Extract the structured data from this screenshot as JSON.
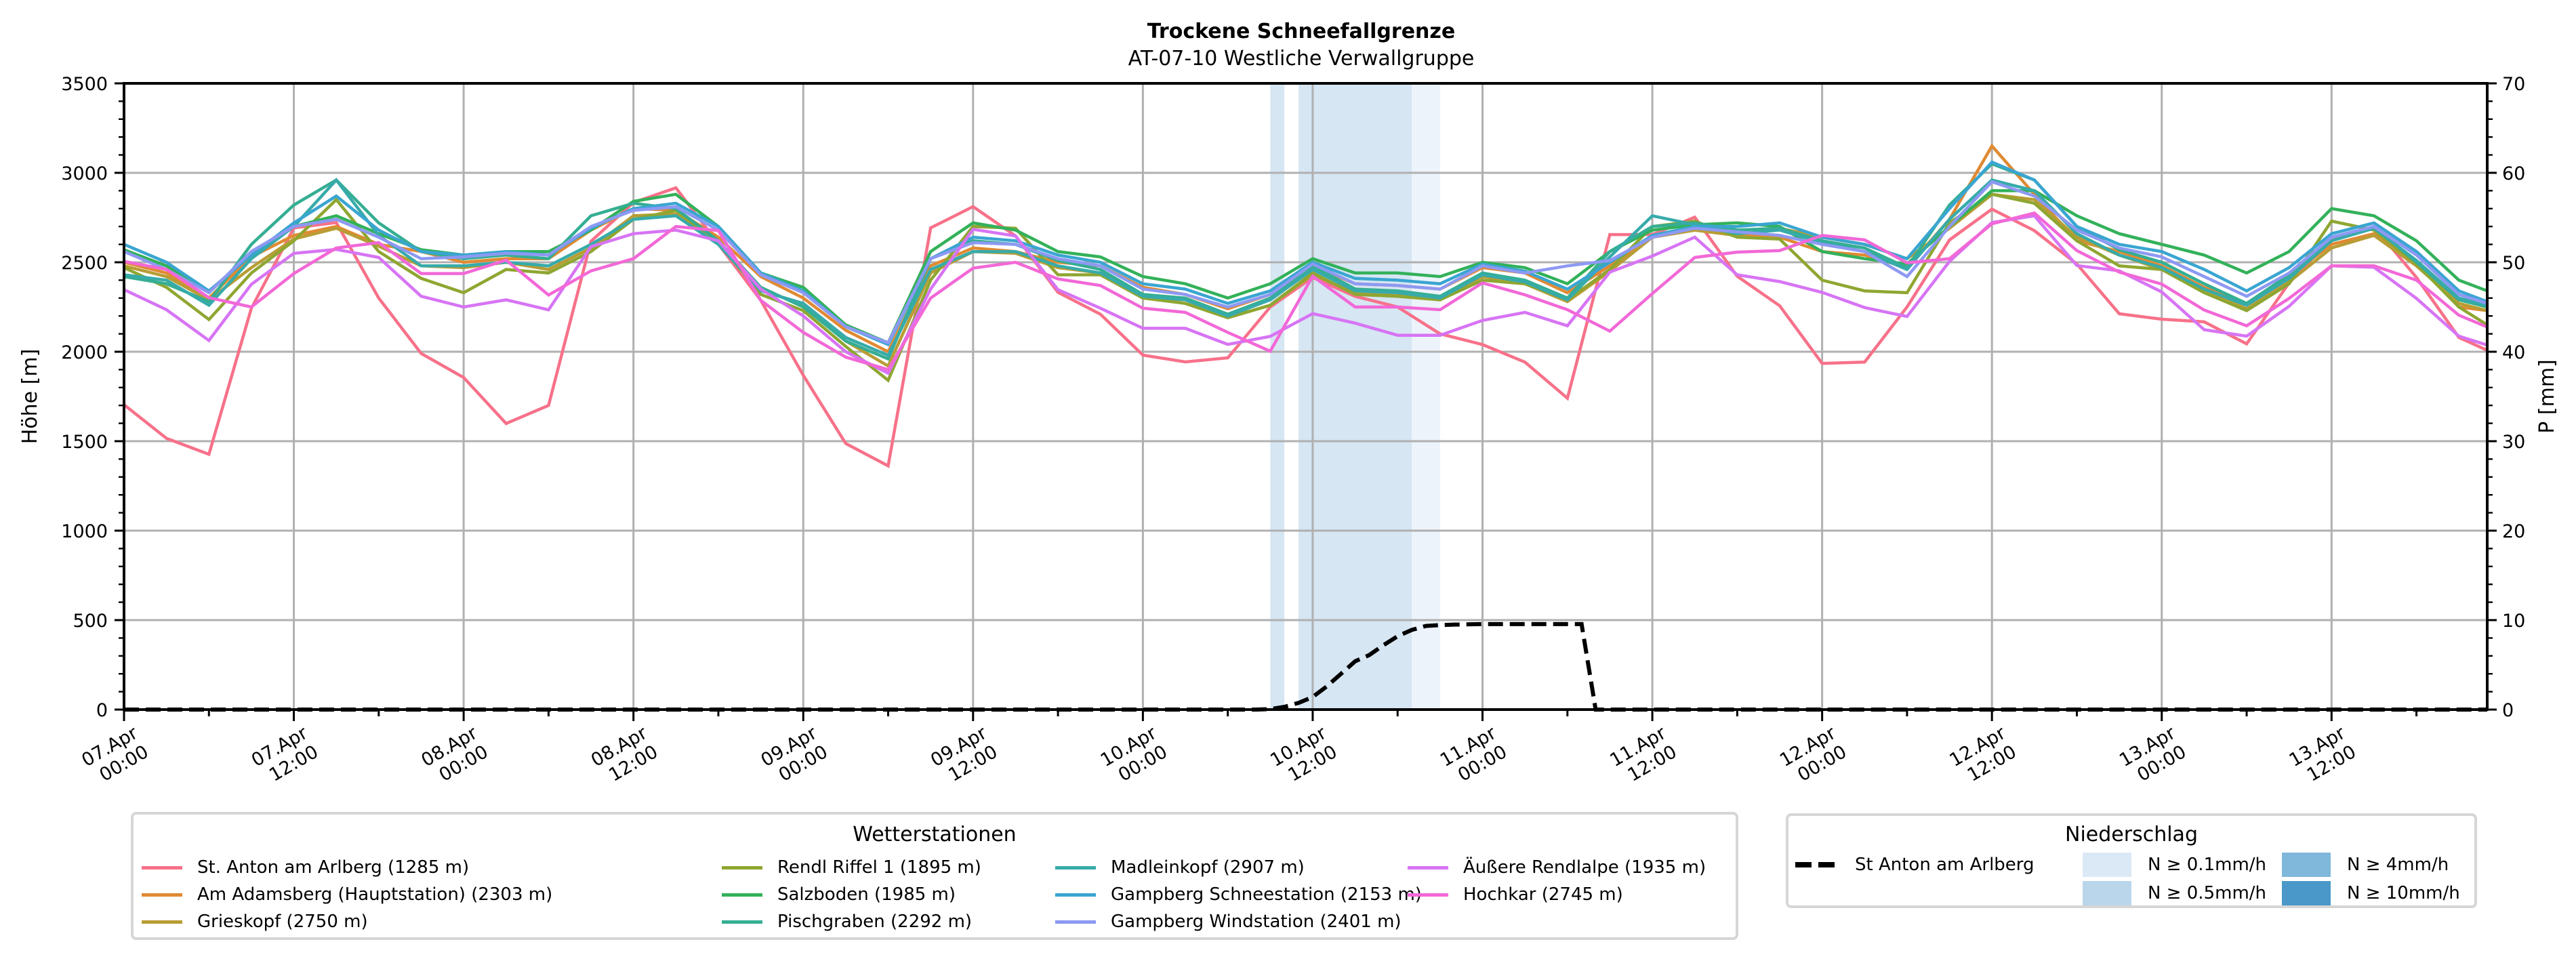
{
  "chart_data": {
    "type": "line",
    "title": "Trockene Schneefallgrenze",
    "subtitle": "AT-07-10 Westliche Verwallgruppe",
    "ylabel": "Höhe [m]",
    "y2label": "P [mm]",
    "ylim": [
      0,
      3500
    ],
    "y2lim": [
      0,
      70
    ],
    "yticks": [
      "0",
      "500",
      "1000",
      "1500",
      "2000",
      "2500",
      "3000",
      "3500"
    ],
    "y2ticks": [
      "0",
      "10",
      "20",
      "30",
      "40",
      "50",
      "60",
      "70"
    ],
    "x_unit": "hours since 07.Apr 00:00",
    "xlim": [
      0,
      167
    ],
    "xticks": [
      {
        "h": 0,
        "line1": "07.Apr",
        "line2": "00:00"
      },
      {
        "h": 12,
        "line1": "07.Apr",
        "line2": "12:00"
      },
      {
        "h": 24,
        "line1": "08.Apr",
        "line2": "00:00"
      },
      {
        "h": 36,
        "line1": "08.Apr",
        "line2": "12:00"
      },
      {
        "h": 48,
        "line1": "09.Apr",
        "line2": "00:00"
      },
      {
        "h": 60,
        "line1": "09.Apr",
        "line2": "12:00"
      },
      {
        "h": 72,
        "line1": "10.Apr",
        "line2": "00:00"
      },
      {
        "h": 84,
        "line1": "10.Apr",
        "line2": "12:00"
      },
      {
        "h": 96,
        "line1": "11.Apr",
        "line2": "00:00"
      },
      {
        "h": 108,
        "line1": "11.Apr",
        "line2": "12:00"
      },
      {
        "h": 120,
        "line1": "12.Apr",
        "line2": "00:00"
      },
      {
        "h": 132,
        "line1": "12.Apr",
        "line2": "12:00"
      },
      {
        "h": 144,
        "line1": "13.Apr",
        "line2": "00:00"
      },
      {
        "h": 156,
        "line1": "13.Apr",
        "line2": "12:00"
      }
    ],
    "grid": true,
    "x": [
      0,
      3,
      6,
      9,
      12,
      15,
      18,
      21,
      24,
      27,
      30,
      33,
      36,
      39,
      42,
      45,
      48,
      51,
      54,
      57,
      60,
      63,
      66,
      69,
      72,
      75,
      78,
      81,
      84,
      87,
      90,
      93,
      96,
      99,
      102,
      105,
      108,
      111,
      114,
      117,
      120,
      123,
      126,
      129,
      132,
      135,
      138,
      141,
      144,
      147,
      150,
      153,
      156,
      159,
      162,
      165,
      167
    ],
    "legend_station_title": "Wetterstationen",
    "series": [
      {
        "name": "St. Anton am Arlberg (1285 m)",
        "color": "#f77189",
        "values": [
          1704,
          1516,
          1427,
          2243,
          2692,
          2722,
          2300,
          1990,
          1856,
          1599,
          1700,
          2617,
          2834,
          2916,
          2602,
          2287,
          1868,
          1487,
          1362,
          2692,
          2811,
          2647,
          2332,
          2210,
          1981,
          1943,
          1966,
          2250,
          2415,
          2310,
          2250,
          2100,
          2040,
          1942,
          1740,
          2655,
          2655,
          2752,
          2422,
          2257,
          1935,
          1942,
          2250,
          2625,
          2797,
          2677,
          2490,
          2212,
          2182,
          2167,
          2044,
          2385,
          2633,
          2698,
          2415,
          2080,
          2008
        ]
      },
      {
        "name": "Am Adamsberg (Hauptstation) (2303 m)",
        "color": "#e08a33",
        "values": [
          2500,
          2440,
          2300,
          2530,
          2650,
          2700,
          2600,
          2560,
          2500,
          2520,
          2520,
          2680,
          2800,
          2790,
          2640,
          2420,
          2300,
          2120,
          2000,
          2480,
          2580,
          2560,
          2500,
          2480,
          2360,
          2320,
          2240,
          2320,
          2480,
          2380,
          2370,
          2350,
          2470,
          2440,
          2330,
          2480,
          2640,
          2680,
          2650,
          2640,
          2560,
          2540,
          2470,
          2740,
          3150,
          2880,
          2620,
          2560,
          2480,
          2360,
          2270,
          2420,
          2600,
          2660,
          2500,
          2250,
          2230
        ]
      },
      {
        "name": "Grieskopf (2750 m)",
        "color": "#b89d34",
        "values": [
          2480,
          2420,
          2290,
          2470,
          2630,
          2690,
          2590,
          2480,
          2470,
          2500,
          2460,
          2580,
          2760,
          2770,
          2620,
          2350,
          2260,
          2060,
          1920,
          2440,
          2560,
          2550,
          2470,
          2440,
          2310,
          2270,
          2190,
          2260,
          2430,
          2330,
          2320,
          2300,
          2420,
          2380,
          2280,
          2450,
          2640,
          2680,
          2650,
          2690,
          2640,
          2600,
          2520,
          2690,
          2880,
          2850,
          2640,
          2540,
          2460,
          2340,
          2240,
          2390,
          2580,
          2650,
          2480,
          2270,
          2230
        ]
      },
      {
        "name": "Rendl Riffel 1 (1895 m)",
        "color": "#8fa631",
        "values": [
          2470,
          2360,
          2180,
          2440,
          2620,
          2850,
          2560,
          2410,
          2330,
          2460,
          2440,
          2560,
          2740,
          2790,
          2610,
          2320,
          2230,
          2030,
          1840,
          2400,
          2700,
          2690,
          2430,
          2430,
          2300,
          2270,
          2190,
          2260,
          2440,
          2320,
          2310,
          2290,
          2400,
          2380,
          2290,
          2460,
          2700,
          2730,
          2640,
          2630,
          2400,
          2340,
          2330,
          2720,
          2880,
          2830,
          2620,
          2480,
          2460,
          2330,
          2230,
          2380,
          2730,
          2680,
          2490,
          2250,
          2150
        ]
      },
      {
        "name": "Salzboden (1985 m)",
        "color": "#33b15a",
        "values": [
          2570,
          2480,
          2330,
          2560,
          2700,
          2760,
          2660,
          2570,
          2540,
          2560,
          2560,
          2680,
          2840,
          2880,
          2700,
          2440,
          2360,
          2150,
          2050,
          2560,
          2720,
          2680,
          2560,
          2530,
          2420,
          2380,
          2300,
          2380,
          2520,
          2440,
          2440,
          2420,
          2500,
          2470,
          2380,
          2560,
          2680,
          2710,
          2720,
          2700,
          2560,
          2520,
          2490,
          2700,
          2900,
          2900,
          2760,
          2660,
          2600,
          2540,
          2440,
          2560,
          2800,
          2760,
          2620,
          2400,
          2340
        ]
      },
      {
        "name": "Pischgraben (2292 m)",
        "color": "#35ae93",
        "values": [
          2420,
          2380,
          2280,
          2600,
          2820,
          2960,
          2720,
          2560,
          2520,
          2540,
          2520,
          2760,
          2830,
          2800,
          2620,
          2360,
          2250,
          2060,
          1960,
          2520,
          2620,
          2600,
          2510,
          2460,
          2320,
          2300,
          2210,
          2300,
          2480,
          2350,
          2340,
          2310,
          2440,
          2400,
          2300,
          2560,
          2700,
          2720,
          2680,
          2690,
          2620,
          2580,
          2470,
          2820,
          3050,
          2960,
          2700,
          2570,
          2500,
          2380,
          2270,
          2430,
          2640,
          2700,
          2500,
          2290,
          2250
        ]
      },
      {
        "name": "Madleinkopf (2907 m)",
        "color": "#37abaa",
        "values": [
          2430,
          2400,
          2260,
          2520,
          2700,
          2960,
          2650,
          2480,
          2480,
          2500,
          2480,
          2600,
          2740,
          2760,
          2600,
          2340,
          2270,
          2080,
          1980,
          2460,
          2560,
          2560,
          2480,
          2440,
          2310,
          2290,
          2200,
          2290,
          2460,
          2340,
          2330,
          2300,
          2430,
          2390,
          2290,
          2530,
          2760,
          2710,
          2660,
          2680,
          2610,
          2560,
          2460,
          2740,
          2960,
          2900,
          2660,
          2540,
          2470,
          2350,
          2260,
          2410,
          2620,
          2690,
          2510,
          2300,
          2260
        ]
      },
      {
        "name": "Gampberg Schneestation (2153 m)",
        "color": "#3aa5d1",
        "values": [
          2600,
          2500,
          2340,
          2540,
          2720,
          2870,
          2680,
          2560,
          2540,
          2560,
          2540,
          2690,
          2800,
          2830,
          2700,
          2440,
          2340,
          2140,
          2040,
          2520,
          2640,
          2620,
          2540,
          2500,
          2380,
          2350,
          2270,
          2340,
          2500,
          2410,
          2400,
          2380,
          2490,
          2450,
          2350,
          2500,
          2650,
          2700,
          2700,
          2720,
          2640,
          2600,
          2520,
          2800,
          3060,
          2960,
          2700,
          2600,
          2560,
          2460,
          2340,
          2470,
          2660,
          2720,
          2560,
          2340,
          2280
        ]
      },
      {
        "name": "Gampberg Windstation (2401 m)",
        "color": "#8d99f3",
        "values": [
          2560,
          2460,
          2330,
          2560,
          2700,
          2740,
          2640,
          2520,
          2530,
          2550,
          2540,
          2700,
          2790,
          2810,
          2680,
          2430,
          2330,
          2140,
          2050,
          2520,
          2610,
          2600,
          2520,
          2480,
          2350,
          2320,
          2250,
          2320,
          2490,
          2380,
          2370,
          2350,
          2480,
          2440,
          2480,
          2510,
          2640,
          2690,
          2670,
          2650,
          2600,
          2560,
          2420,
          2700,
          2950,
          2870,
          2680,
          2580,
          2530,
          2420,
          2310,
          2440,
          2640,
          2700,
          2540,
          2320,
          2270
        ]
      },
      {
        "name": "Äußere Rendlalpe (1935 m)",
        "color": "#d774f4",
        "values": [
          2347,
          2235,
          2063,
          2377,
          2550,
          2572,
          2527,
          2310,
          2250,
          2290,
          2234,
          2587,
          2660,
          2680,
          2620,
          2350,
          2200,
          2000,
          1880,
          2350,
          2684,
          2647,
          2347,
          2243,
          2131,
          2131,
          2041,
          2086,
          2213,
          2160,
          2092,
          2092,
          2175,
          2220,
          2145,
          2445,
          2535,
          2640,
          2430,
          2392,
          2332,
          2247,
          2197,
          2505,
          2722,
          2760,
          2482,
          2452,
          2334,
          2123,
          2087,
          2254,
          2480,
          2472,
          2298,
          2087,
          2037
        ]
      },
      {
        "name": "Hochkar (2745 m)",
        "color": "#f268d7",
        "values": [
          2505,
          2460,
          2302,
          2250,
          2437,
          2580,
          2610,
          2437,
          2437,
          2512,
          2317,
          2452,
          2520,
          2700,
          2677,
          2287,
          2108,
          1970,
          1900,
          2300,
          2467,
          2500,
          2407,
          2370,
          2243,
          2220,
          2108,
          2003,
          2422,
          2250,
          2250,
          2235,
          2385,
          2318,
          2235,
          2115,
          2325,
          2527,
          2557,
          2565,
          2650,
          2625,
          2497,
          2520,
          2715,
          2775,
          2565,
          2445,
          2378,
          2233,
          2145,
          2298,
          2480,
          2480,
          2400,
          2204,
          2138
        ]
      }
    ],
    "precip": {
      "legend_title": "Niederschlag",
      "series_name": "St Anton am Arlberg",
      "color": "#000000",
      "x": [
        0,
        80,
        81,
        82,
        83,
        84,
        85,
        86,
        87,
        88,
        89,
        90,
        91,
        92,
        93,
        94,
        96,
        100,
        103,
        104,
        167
      ],
      "values": [
        0,
        0,
        0.05,
        0.3,
        0.75,
        1.4,
        2.6,
        4.0,
        5.4,
        6.1,
        7.2,
        8.2,
        8.9,
        9.35,
        9.45,
        9.5,
        9.55,
        9.55,
        9.55,
        0,
        0
      ]
    },
    "precip_bands": [
      {
        "start": 81,
        "end": 82,
        "level": "N ≥ 0.5mm/h"
      },
      {
        "start": 83,
        "end": 91,
        "level": "N ≥ 0.5mm/h"
      },
      {
        "start": 91,
        "end": 93,
        "level": "N ≥ 0.1mm/h"
      }
    ],
    "precip_levels": [
      {
        "label": "N ≥ 0.1mm/h",
        "color": "#dbe9f6"
      },
      {
        "label": "N ≥ 0.5mm/h",
        "color": "#bad6eb"
      },
      {
        "label": "N ≥ 4mm/h",
        "color": "#7fb8da"
      },
      {
        "label": "N ≥ 10mm/h",
        "color": "#4a98c9"
      }
    ],
    "band_colors": {
      "N ≥ 0.1mm/h": "#ecf3fb",
      "N ≥ 0.5mm/h": "#d6e6f3"
    }
  }
}
